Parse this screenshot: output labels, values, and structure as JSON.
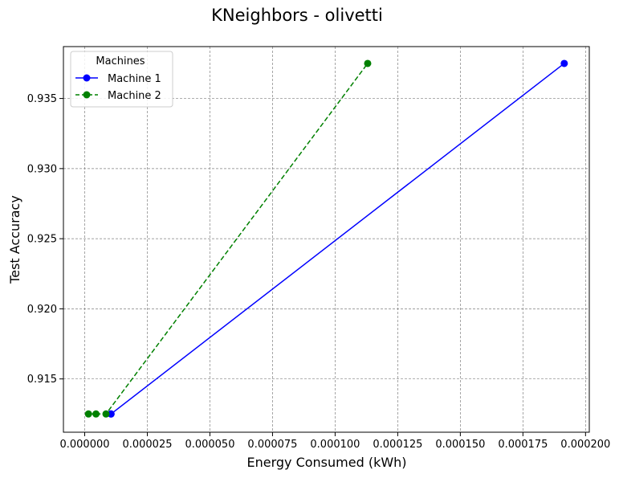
{
  "chart_data": {
    "type": "line",
    "title": "KNeighbors - olivetti",
    "xlabel": "Energy Consumed (kWh)",
    "ylabel": "Test Accuracy",
    "xlim": [
      -8.5e-06,
      0.0002015
    ],
    "ylim": [
      0.9112,
      0.9387
    ],
    "x_ticks": [
      0.0,
      2.5e-05,
      5e-05,
      7.5e-05,
      0.0001,
      0.000125,
      0.00015,
      0.000175,
      0.0002
    ],
    "x_tick_labels": [
      "0.000000",
      "0.000025",
      "0.000050",
      "0.000075",
      "0.000100",
      "0.000125",
      "0.000150",
      "0.000175",
      "0.000200"
    ],
    "y_ticks": [
      0.915,
      0.92,
      0.925,
      0.93,
      0.935
    ],
    "y_tick_labels": [
      "0.915",
      "0.920",
      "0.925",
      "0.930",
      "0.935"
    ],
    "grid": true,
    "legend": {
      "title": "Machines",
      "position": "top-left"
    },
    "series": [
      {
        "name": "Machine 1",
        "color": "#0000ff",
        "line_style": "solid",
        "marker": "circle",
        "x": [
          1.05e-05,
          1.05e-05,
          0.0001915
        ],
        "y": [
          0.9125,
          0.9125,
          0.9375
        ]
      },
      {
        "name": "Machine 2",
        "color": "#008000",
        "line_style": "dashed",
        "marker": "circle",
        "x": [
          1.5e-06,
          4.5e-06,
          8.5e-06,
          0.000113
        ],
        "y": [
          0.9125,
          0.9125,
          0.9125,
          0.9375
        ]
      }
    ]
  }
}
